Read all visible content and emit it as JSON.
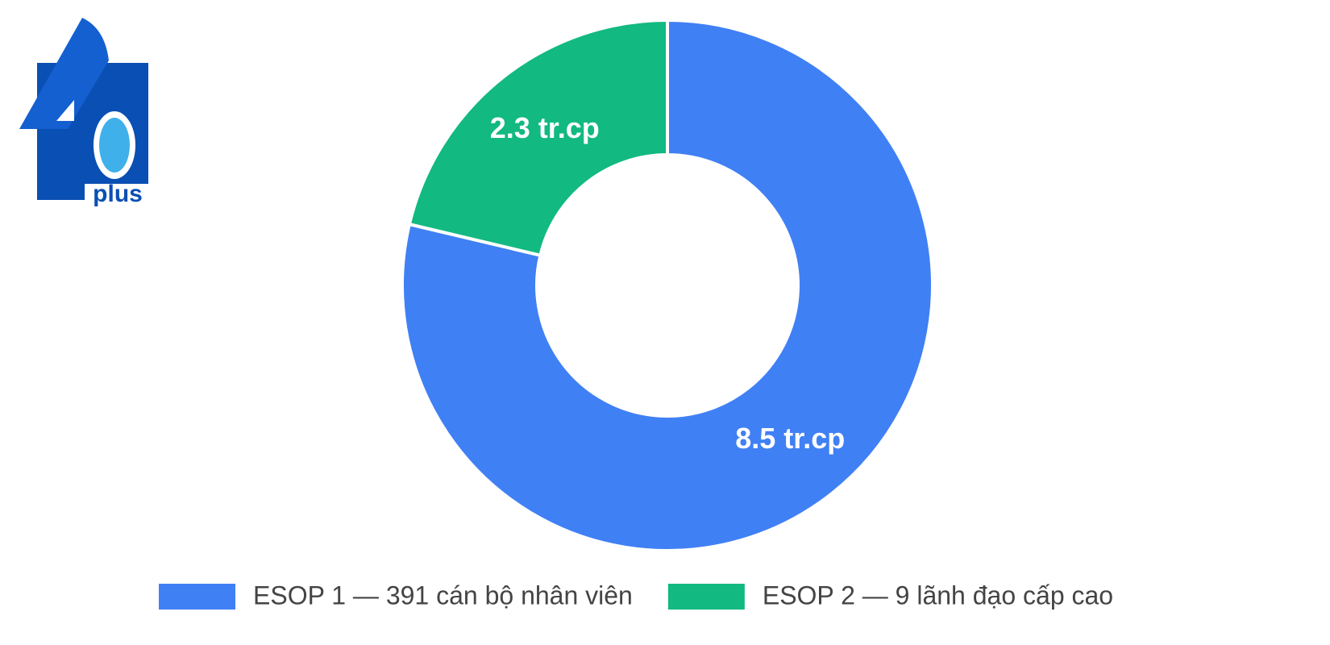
{
  "logo": {
    "text": "plus"
  },
  "chart_data": {
    "type": "donut",
    "categories": [
      "ESOP 1 — 391 cán bộ nhân viên",
      "ESOP 2 — 9 lãnh đạo cấp cao"
    ],
    "values": [
      8.5,
      2.3
    ],
    "value_labels": [
      "8.5 tr.cp",
      "2.3 tr.cp"
    ],
    "colors": [
      "#4080f5",
      "#12b981"
    ],
    "legend": "bottom"
  }
}
